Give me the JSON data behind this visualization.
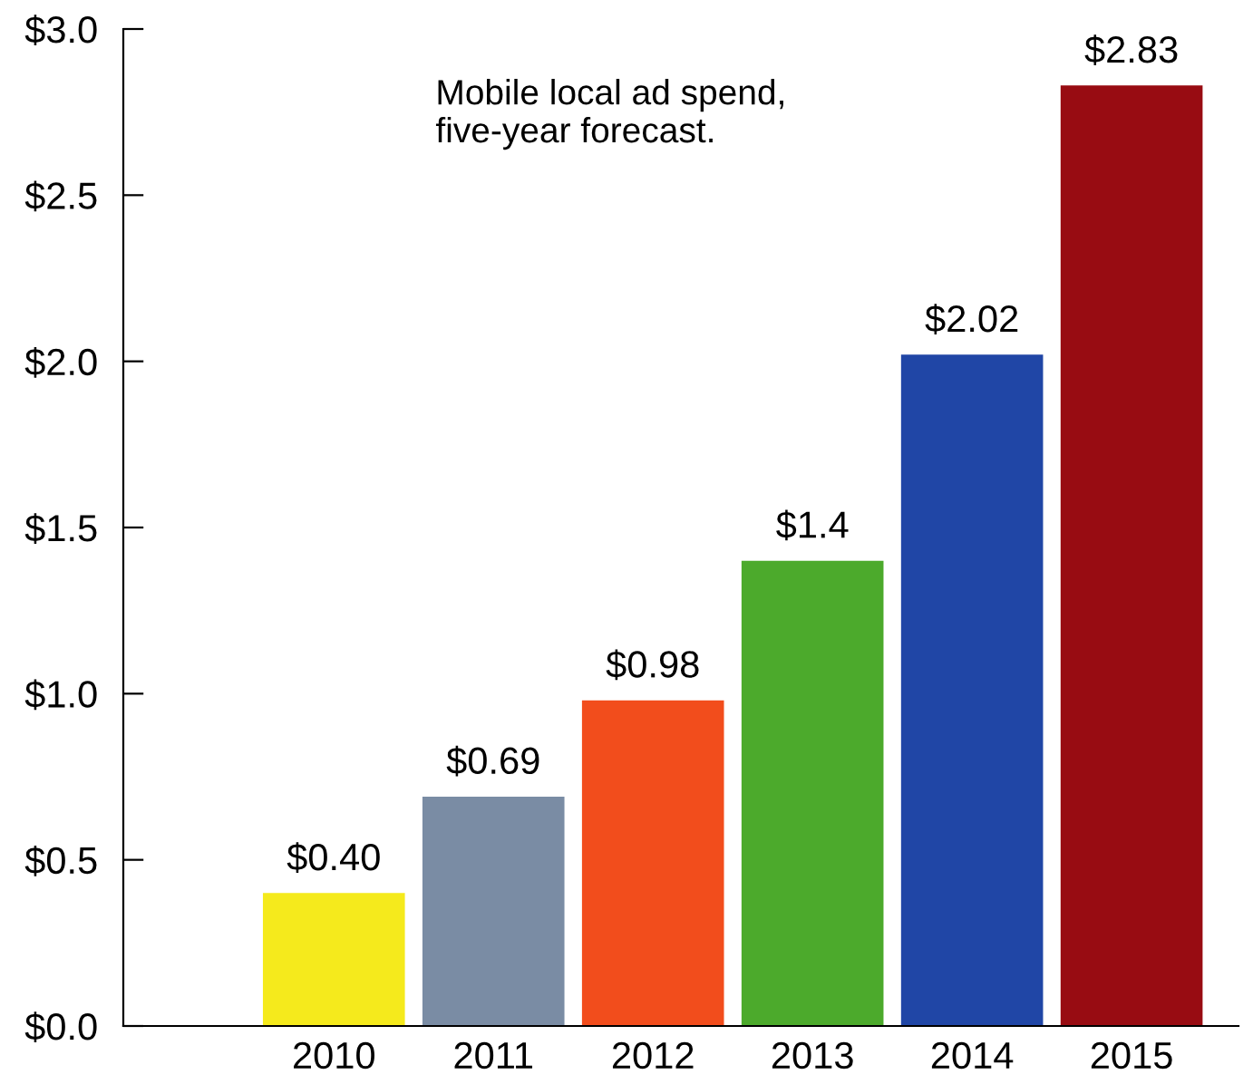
{
  "chart_data": {
    "type": "bar",
    "title": "Mobile local ad spend,\nfive-year forecast.",
    "categories": [
      "2010",
      "2011",
      "2012",
      "2013",
      "2014",
      "2015"
    ],
    "values": [
      0.4,
      0.69,
      0.98,
      1.4,
      2.02,
      2.83
    ],
    "value_labels": [
      "$0.40",
      "$0.69",
      "$0.98",
      "$1.4",
      "$2.02",
      "$2.83"
    ],
    "colors": [
      "#f5ea1c",
      "#7a8ca4",
      "#f24d1c",
      "#4caa2c",
      "#2046a6",
      "#980c12"
    ],
    "ylim": [
      0,
      3.0
    ],
    "yticks": [
      {
        "value": 0,
        "label": "$0.0"
      },
      {
        "value": 0.5,
        "label": "$0.5"
      },
      {
        "value": 1.0,
        "label": "$1.0"
      },
      {
        "value": 1.5,
        "label": "$1.5"
      },
      {
        "value": 2.0,
        "label": "$2.0"
      },
      {
        "value": 2.5,
        "label": "$2.5"
      },
      {
        "value": 3.0,
        "label": "$3.0"
      }
    ],
    "grid": false,
    "legend": false
  }
}
